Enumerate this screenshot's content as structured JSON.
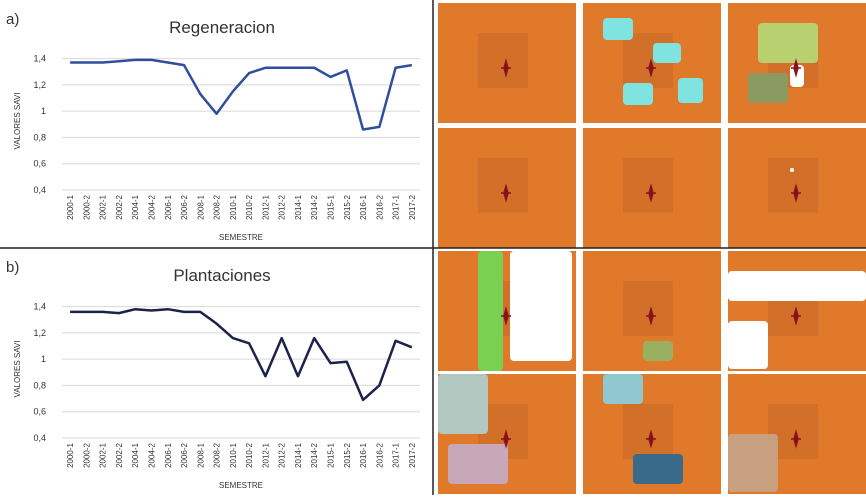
{
  "chart_data": [
    {
      "type": "line",
      "panel_label": "a)",
      "title": "Regeneracion",
      "x_label": "SEMESTRE",
      "y_label": "VALORES SAVI",
      "categories": [
        "2000-1",
        "2000-2",
        "2002-1",
        "2002-2",
        "2004-1",
        "2004-2",
        "2006-1",
        "2006-2",
        "2008-1",
        "2008-2",
        "2010-1",
        "2010-2",
        "2012-1",
        "2012-2",
        "2014-1",
        "2014-2",
        "2015-1",
        "2015-2",
        "2016-1",
        "2016-2",
        "2017-1",
        "2017-2"
      ],
      "values": [
        1.37,
        1.37,
        1.37,
        1.38,
        1.39,
        1.39,
        1.37,
        1.35,
        1.13,
        0.98,
        1.15,
        1.29,
        1.33,
        1.33,
        1.33,
        1.33,
        1.26,
        1.31,
        0.86,
        0.88,
        1.33,
        1.35
      ],
      "color": "#2f4f9e",
      "ylim": [
        0.4,
        1.45
      ],
      "yticks": [
        {
          "value": 0.4,
          "label": "0,4"
        },
        {
          "value": 0.6,
          "label": "0,6"
        },
        {
          "value": 0.8,
          "label": "0,8"
        },
        {
          "value": 1,
          "label": "1"
        },
        {
          "value": 1.2,
          "label": "1,2"
        },
        {
          "value": 1.4,
          "label": "1,4"
        }
      ],
      "grid": true
    },
    {
      "type": "line",
      "panel_label": "b)",
      "title": "Plantaciones",
      "x_label": "SEMESTRE",
      "y_label": "VALORES SAVI",
      "categories": [
        "2000-1",
        "2000-2",
        "2002-1",
        "2002-2",
        "2004-1",
        "2004-2",
        "2006-1",
        "2006-2",
        "2008-1",
        "2008-2",
        "2010-1",
        "2010-2",
        "2012-1",
        "2012-2",
        "2014-1",
        "2014-2",
        "2015-1",
        "2015-2",
        "2016-1",
        "2016-2",
        "2017-1",
        "2017-2"
      ],
      "values": [
        1.36,
        1.36,
        1.36,
        1.35,
        1.38,
        1.37,
        1.38,
        1.36,
        1.36,
        1.27,
        1.16,
        1.12,
        0.87,
        1.16,
        0.87,
        1.16,
        0.97,
        0.98,
        0.69,
        0.8,
        1.14,
        1.09
      ],
      "color": "#1b2448",
      "ylim": [
        0.4,
        1.45
      ],
      "yticks": [
        {
          "value": 0.4,
          "label": "0,4"
        },
        {
          "value": 0.6,
          "label": "0,6"
        },
        {
          "value": 0.8,
          "label": "0,8"
        },
        {
          "value": 1,
          "label": "1"
        },
        {
          "value": 1.2,
          "label": "1,2"
        },
        {
          "value": 1.4,
          "label": "1,4"
        }
      ],
      "grid": true
    }
  ]
}
